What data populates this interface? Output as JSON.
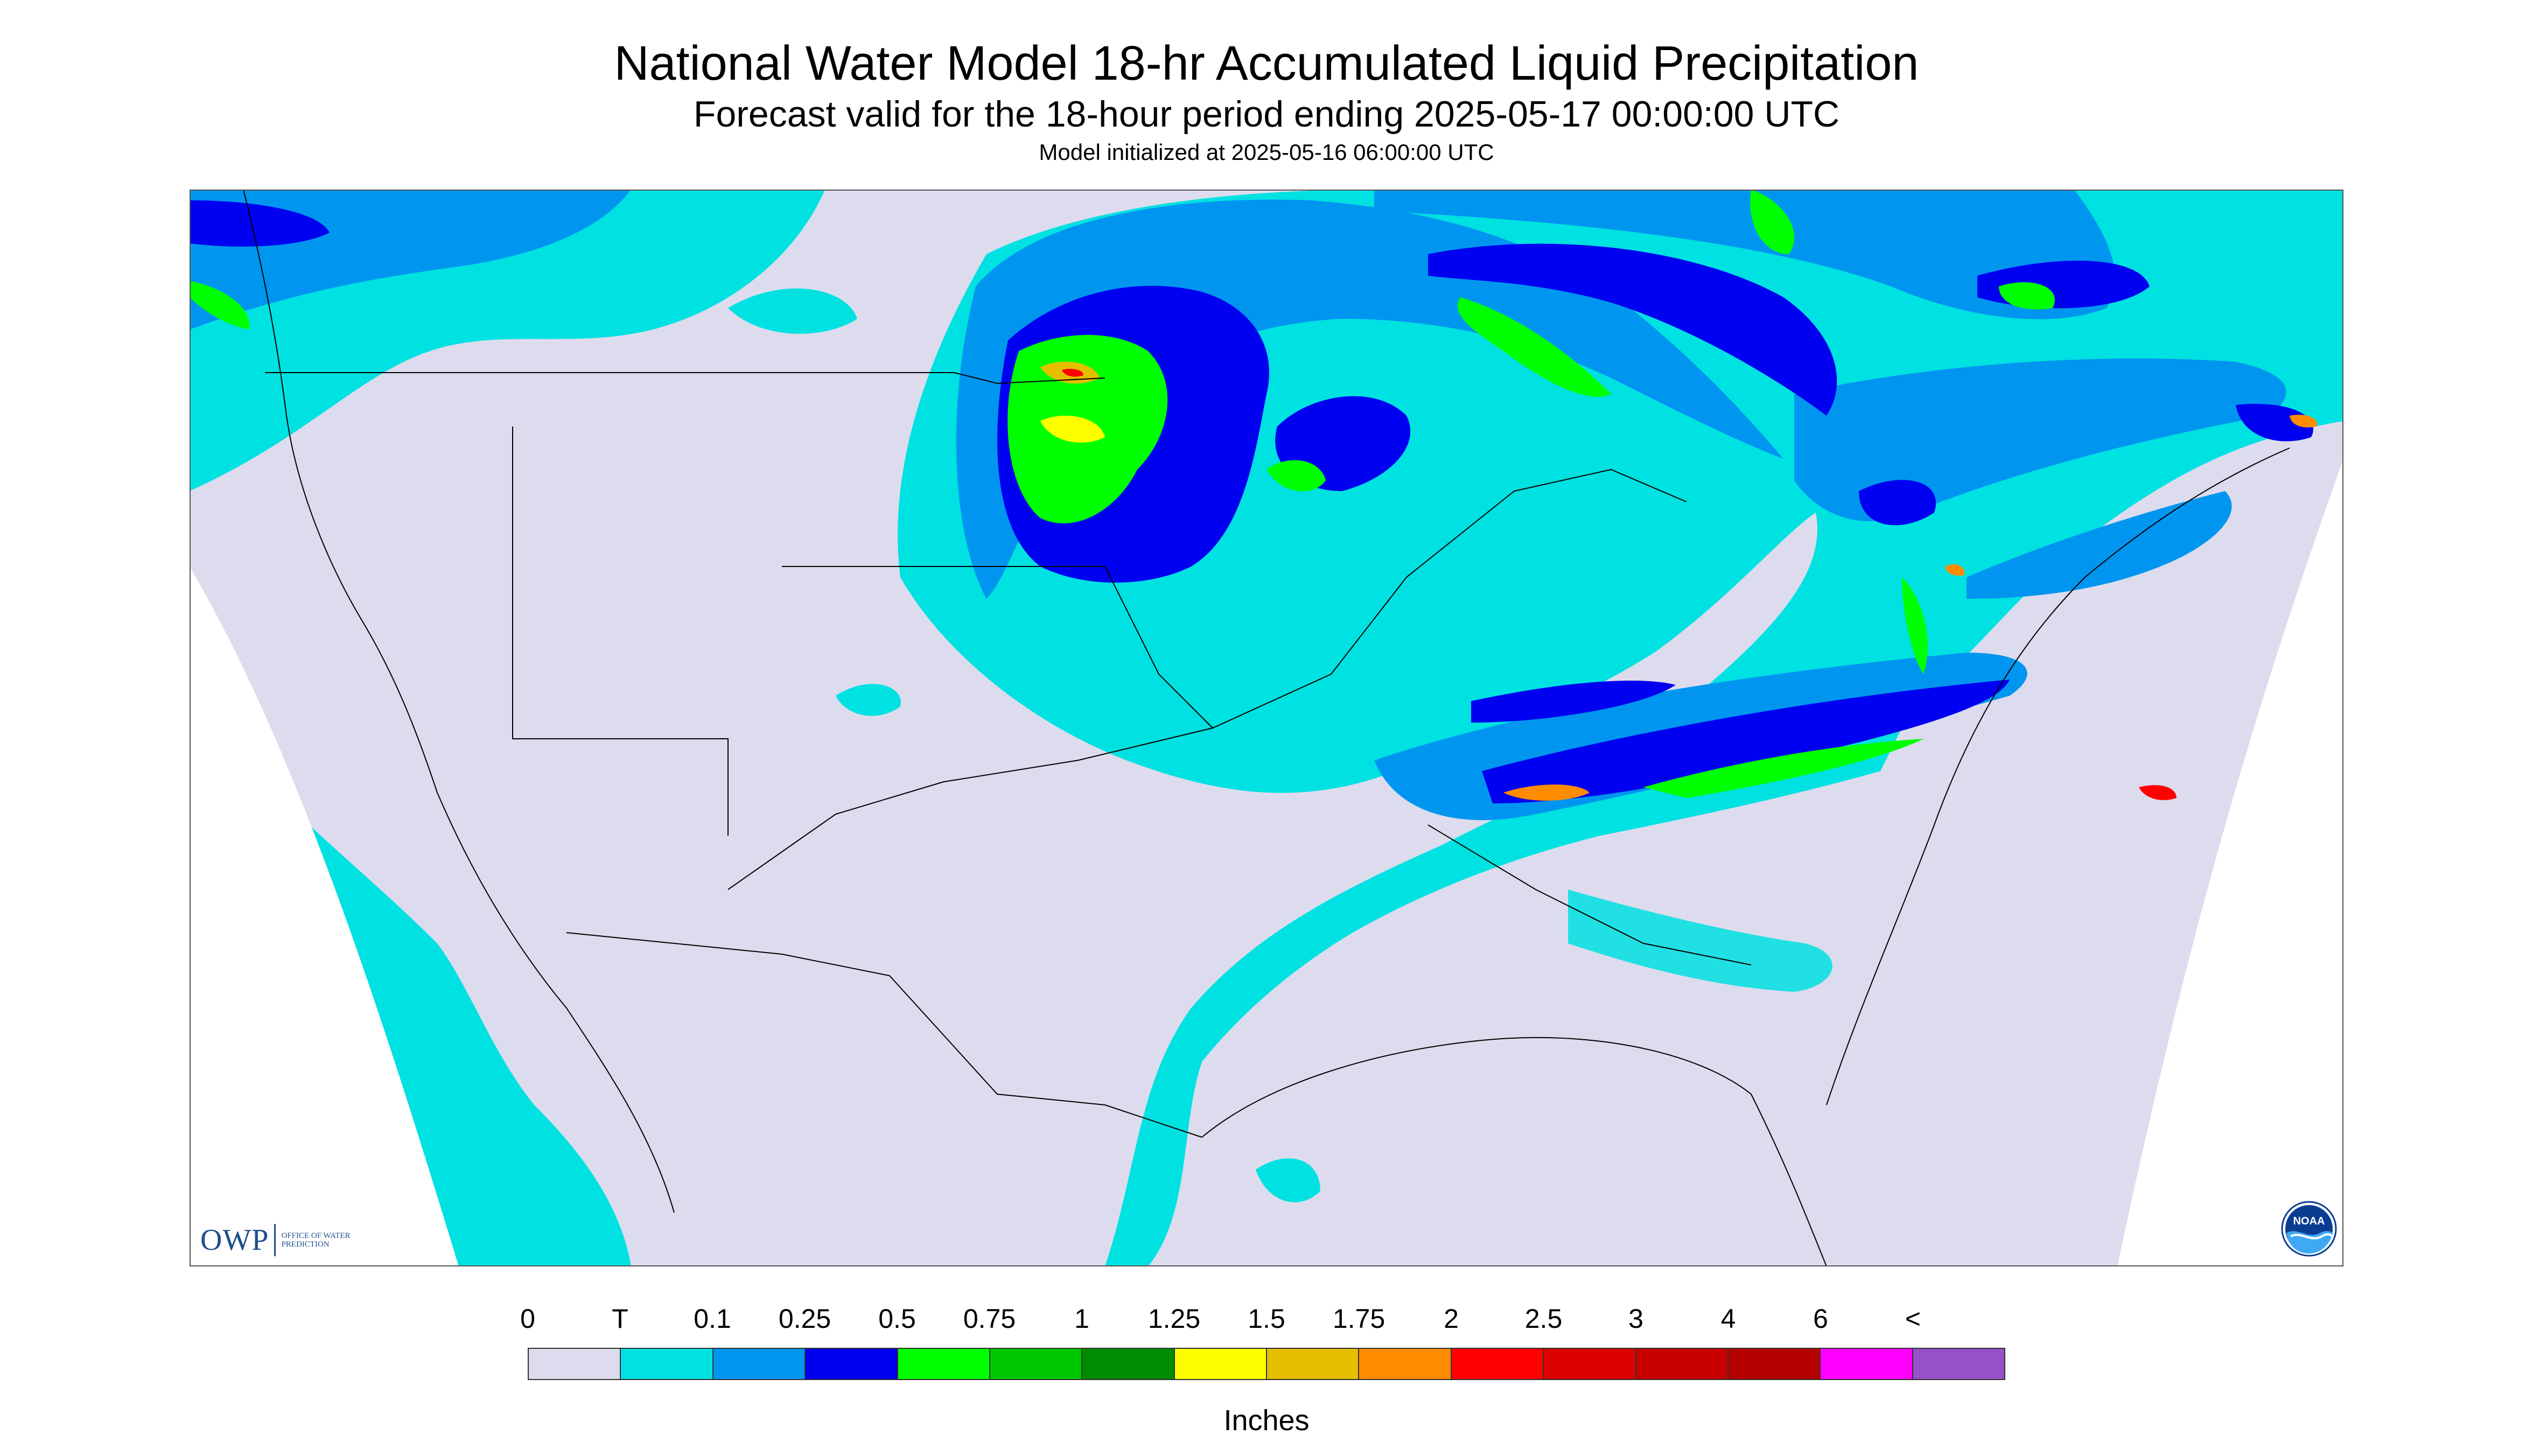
{
  "header": {
    "title": "National Water Model 18-hr Accumulated Liquid Precipitation",
    "subtitle": "Forecast valid for the 18-hour period ending 2025-05-17 00:00:00 UTC",
    "init": "Model initialized at 2025-05-16 06:00:00 UTC"
  },
  "logos": {
    "owp_text": "OWP",
    "owp_sub": "OFFICE OF WATER PREDICTION",
    "noaa_text": "NOAA"
  },
  "legend": {
    "unit": "Inches",
    "labels": [
      "0",
      "T",
      "0.1",
      "0.25",
      "0.5",
      "0.75",
      "1",
      "1.25",
      "1.5",
      "1.75",
      "2",
      "2.5",
      "3",
      "4",
      "6",
      "<"
    ],
    "colors": [
      "#dcdcee",
      "#00e1e1",
      "#0096f0",
      "#0000f0",
      "#00ff00",
      "#00c800",
      "#008c00",
      "#ffff00",
      "#e6be00",
      "#ff8c00",
      "#ff0000",
      "#dc0000",
      "#c80000",
      "#b40000",
      "#ff00ff",
      "#9650c8"
    ]
  },
  "map": {
    "background_color": "#ffffff",
    "domain_color": "#dcdcee",
    "border_color": "#000000"
  }
}
